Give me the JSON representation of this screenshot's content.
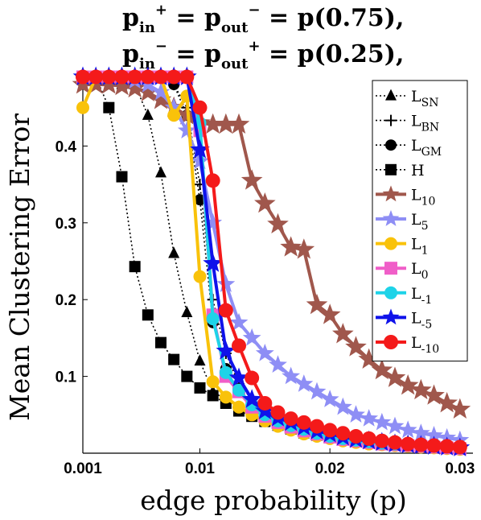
{
  "chart_data": {
    "type": "line",
    "title_lines": [
      "p_in^+ = p_out^- = p(0.75),",
      "p_in^- = p_out^+ = p(0.25),"
    ],
    "xlabel": "edge probability (p)",
    "ylabel": "Mean Clustering Error",
    "xlim": [
      0.001,
      0.031
    ],
    "ylim": [
      0.0,
      0.5
    ],
    "x_ticks": [
      0.001,
      0.01,
      0.02,
      0.03
    ],
    "x_tick_labels": [
      "0.001",
      "0.01",
      "0.02",
      "0.03"
    ],
    "y_ticks": [
      0.1,
      0.2,
      0.3,
      0.4
    ],
    "y_tick_labels": [
      "0.1",
      "0.2",
      "0.3",
      "0.4"
    ],
    "grid": false,
    "legend_position": "top-right",
    "x": [
      0.001,
      0.002,
      0.003,
      0.004,
      0.005,
      0.006,
      0.007,
      0.008,
      0.009,
      0.01,
      0.011,
      0.012,
      0.013,
      0.014,
      0.015,
      0.016,
      0.017,
      0.018,
      0.019,
      0.02,
      0.021,
      0.022,
      0.023,
      0.024,
      0.025,
      0.026,
      0.027,
      0.028,
      0.029,
      0.03
    ],
    "series": [
      {
        "name": "L_SN",
        "label_main": "L",
        "label_sub": "SN",
        "color": "#000000",
        "marker": "triangle",
        "dash": true,
        "width": 1.6,
        "size": 7,
        "values": [
          0.49,
          0.49,
          0.49,
          0.48,
          0.48,
          0.44,
          0.365,
          0.26,
          0.183,
          0.12,
          0.08,
          0.07,
          0.06,
          0.05,
          0.04,
          0.035,
          0.03,
          0.025,
          0.022,
          0.02,
          0.018,
          0.016,
          0.014,
          0.012,
          0.011,
          0.01,
          0.009,
          0.008,
          0.007,
          0.006
        ]
      },
      {
        "name": "L_BN",
        "label_main": "L",
        "label_sub": "BN",
        "color": "#000000",
        "marker": "plus",
        "dash": true,
        "width": 1.6,
        "size": 7,
        "values": [
          0.49,
          0.49,
          0.49,
          0.49,
          0.49,
          0.49,
          0.49,
          0.48,
          0.45,
          0.35,
          0.2,
          0.13,
          0.09,
          0.07,
          0.05,
          0.04,
          0.035,
          0.03,
          0.025,
          0.02,
          0.018,
          0.016,
          0.014,
          0.012,
          0.011,
          0.01,
          0.009,
          0.008,
          0.007,
          0.006
        ]
      },
      {
        "name": "L_GM",
        "label_main": "L",
        "label_sub": "GM",
        "color": "#000000",
        "marker": "circle",
        "dash": true,
        "width": 1.6,
        "size": 7,
        "values": [
          0.49,
          0.49,
          0.49,
          0.49,
          0.49,
          0.49,
          0.49,
          0.48,
          0.44,
          0.33,
          0.17,
          0.11,
          0.08,
          0.06,
          0.045,
          0.038,
          0.032,
          0.027,
          0.023,
          0.02,
          0.018,
          0.016,
          0.014,
          0.012,
          0.011,
          0.01,
          0.009,
          0.008,
          0.007,
          0.006
        ]
      },
      {
        "name": "H",
        "label_main": "H",
        "label_sub": "",
        "color": "#000000",
        "marker": "square",
        "dash": true,
        "width": 1.6,
        "size": 7,
        "values": [
          0.49,
          0.49,
          0.45,
          0.36,
          0.243,
          0.18,
          0.144,
          0.122,
          0.1,
          0.085,
          0.075,
          0.065,
          0.055,
          0.048,
          0.042,
          0.037,
          0.032,
          0.028,
          0.024,
          0.021,
          0.019,
          0.017,
          0.015,
          0.013,
          0.012,
          0.011,
          0.01,
          0.009,
          0.008,
          0.007
        ]
      },
      {
        "name": "L_10",
        "label_main": "L",
        "label_sub": "10",
        "color": "#a0574c",
        "marker": "star",
        "dash": false,
        "width": 4,
        "size": 14,
        "values": [
          0.48,
          0.48,
          0.48,
          0.478,
          0.475,
          0.47,
          0.46,
          0.45,
          0.44,
          0.43,
          0.428,
          0.428,
          0.428,
          0.355,
          0.325,
          0.298,
          0.268,
          0.265,
          0.193,
          0.18,
          0.155,
          0.138,
          0.122,
          0.108,
          0.098,
          0.088,
          0.082,
          0.075,
          0.065,
          0.057
        ]
      },
      {
        "name": "L_5",
        "label_main": "L",
        "label_sub": "5",
        "color": "#8e8ef5",
        "marker": "star",
        "dash": false,
        "width": 4,
        "size": 12,
        "values": [
          0.49,
          0.49,
          0.49,
          0.49,
          0.485,
          0.48,
          0.47,
          0.45,
          0.42,
          0.38,
          0.3,
          0.22,
          0.17,
          0.15,
          0.13,
          0.115,
          0.1,
          0.09,
          0.08,
          0.07,
          0.06,
          0.05,
          0.045,
          0.04,
          0.035,
          0.03,
          0.026,
          0.023,
          0.02,
          0.017
        ]
      },
      {
        "name": "L_1",
        "label_main": "L",
        "label_sub": "1",
        "color": "#f9c20a",
        "marker": "circle",
        "dash": false,
        "width": 4,
        "size": 8,
        "values": [
          0.45,
          0.49,
          0.49,
          0.49,
          0.49,
          0.49,
          0.49,
          0.44,
          0.465,
          0.23,
          0.093,
          0.073,
          0.06,
          0.05,
          0.042,
          0.035,
          0.03,
          0.025,
          0.022,
          0.019,
          0.016,
          0.014,
          0.012,
          0.011,
          0.01,
          0.009,
          0.008,
          0.007,
          0.006,
          0.005
        ]
      },
      {
        "name": "L_0",
        "label_main": "L",
        "label_sub": "0",
        "color": "#f05ec8",
        "marker": "square",
        "dash": false,
        "width": 4,
        "size": 8,
        "values": [
          0.49,
          0.49,
          0.49,
          0.49,
          0.49,
          0.49,
          0.49,
          0.49,
          0.49,
          0.42,
          0.18,
          0.1,
          0.08,
          0.06,
          0.048,
          0.04,
          0.034,
          0.029,
          0.025,
          0.021,
          0.018,
          0.016,
          0.014,
          0.012,
          0.011,
          0.01,
          0.009,
          0.008,
          0.007,
          0.006
        ]
      },
      {
        "name": "L_-1",
        "label_main": "L",
        "label_sub": "-1",
        "color": "#1ed3e8",
        "marker": "circle",
        "dash": false,
        "width": 4,
        "size": 8,
        "values": [
          0.49,
          0.49,
          0.49,
          0.49,
          0.49,
          0.49,
          0.49,
          0.49,
          0.49,
          0.43,
          0.175,
          0.105,
          0.082,
          0.063,
          0.05,
          0.042,
          0.036,
          0.031,
          0.026,
          0.022,
          0.019,
          0.017,
          0.015,
          0.013,
          0.012,
          0.011,
          0.01,
          0.009,
          0.008,
          0.007
        ]
      },
      {
        "name": "L_-5",
        "label_main": "L",
        "label_sub": "-5",
        "color": "#0f12ea",
        "marker": "star",
        "dash": false,
        "width": 4,
        "size": 13,
        "values": [
          0.49,
          0.49,
          0.49,
          0.49,
          0.49,
          0.49,
          0.49,
          0.49,
          0.49,
          0.395,
          0.247,
          0.133,
          0.098,
          0.07,
          0.055,
          0.046,
          0.04,
          0.034,
          0.029,
          0.025,
          0.021,
          0.018,
          0.016,
          0.014,
          0.012,
          0.011,
          0.01,
          0.009,
          0.008,
          0.007
        ]
      },
      {
        "name": "L_-10",
        "label_main": "L",
        "label_sub": "-10",
        "color": "#f41a1a",
        "marker": "circle",
        "dash": false,
        "width": 4,
        "size": 9,
        "values": [
          0.49,
          0.49,
          0.49,
          0.49,
          0.49,
          0.49,
          0.49,
          0.49,
          0.49,
          0.45,
          0.355,
          0.186,
          0.14,
          0.098,
          0.065,
          0.053,
          0.045,
          0.04,
          0.035,
          0.03,
          0.026,
          0.022,
          0.019,
          0.016,
          0.014,
          0.012,
          0.011,
          0.01,
          0.009,
          0.008
        ]
      }
    ]
  }
}
